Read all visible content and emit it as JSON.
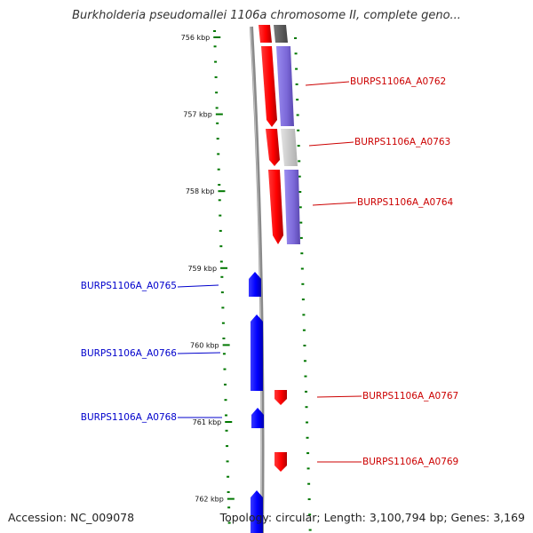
{
  "title": "Burkholderia pseudomallei 1106a chromosome II, complete geno...",
  "footer": {
    "accession": "Accession: NC_009078",
    "topology": "Topology: circular; Length: 3,100,794 bp; Genes: 3,169"
  },
  "colors": {
    "plus_strand_gene": "#ff0000",
    "minus_strand_gene": "#0000ff",
    "plus_label": "#cc0000",
    "minus_label": "#0000cc",
    "ruler_tick": "#007700",
    "backbone": "#888888",
    "feature_purple": "#7b68d8",
    "feature_grey": "#c8c8c8",
    "feature_dark": "#555555"
  },
  "ruler": {
    "unit": "kbp",
    "labels": [
      "756 kbp",
      "757 kbp",
      "758 kbp",
      "759 kbp",
      "760 kbp",
      "761 kbp",
      "762 kbp"
    ]
  },
  "genes": [
    {
      "id": "BURPS1106A_A0762",
      "strand": "+"
    },
    {
      "id": "BURPS1106A_A0763",
      "strand": "+"
    },
    {
      "id": "BURPS1106A_A0764",
      "strand": "+"
    },
    {
      "id": "BURPS1106A_A0765",
      "strand": "-"
    },
    {
      "id": "BURPS1106A_A0766",
      "strand": "-"
    },
    {
      "id": "BURPS1106A_A0767",
      "strand": "+"
    },
    {
      "id": "BURPS1106A_A0768",
      "strand": "-"
    },
    {
      "id": "BURPS1106A_A0769",
      "strand": "+"
    }
  ]
}
